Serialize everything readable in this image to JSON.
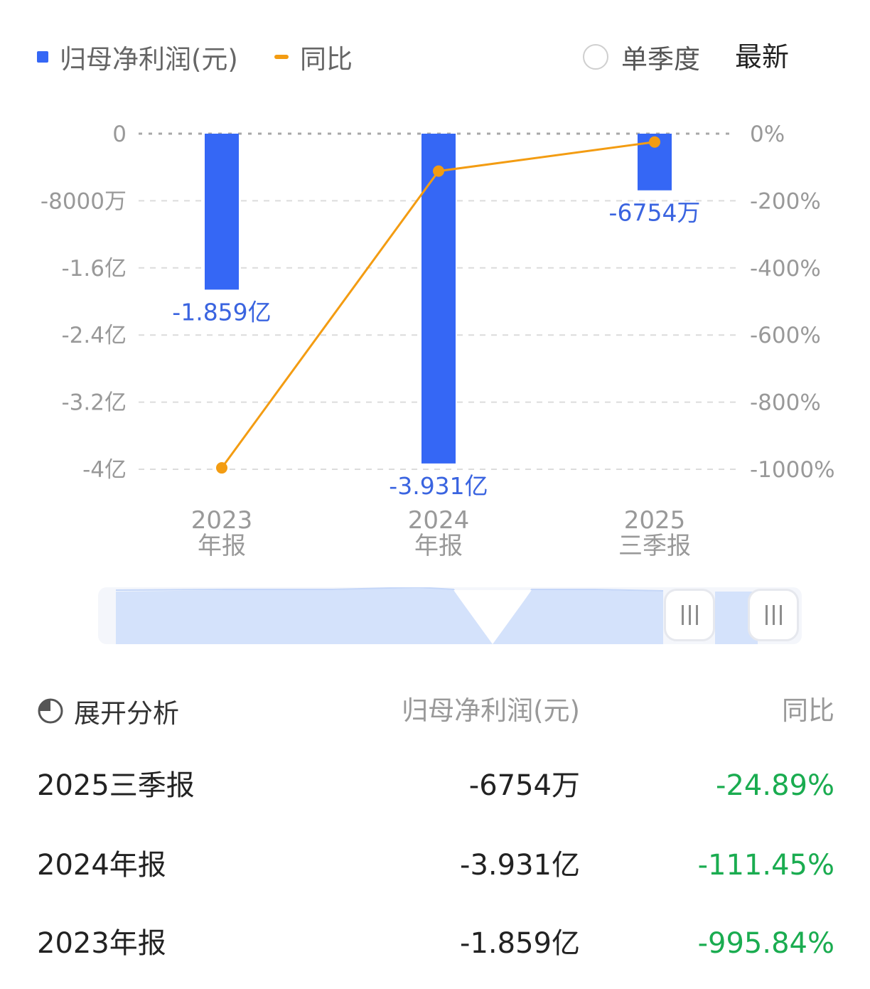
{
  "legend": {
    "bar_label": "归母净利润(元)",
    "line_label": "同比",
    "single_quarter_label": "单季度",
    "latest_label": "最新"
  },
  "chart_data": {
    "type": "bar",
    "categories": [
      [
        "2023",
        "年报"
      ],
      [
        "2024",
        "年报"
      ],
      [
        "2025",
        "三季报"
      ]
    ],
    "series": [
      {
        "name": "归母净利润(元)",
        "type": "bar",
        "axis": "left",
        "values": [
          -185900000,
          -393100000,
          -67540000
        ],
        "labels": [
          "-1.859亿",
          "-3.931亿",
          "-6754万"
        ]
      },
      {
        "name": "同比",
        "type": "line",
        "axis": "right",
        "values": [
          -995.84,
          -111.45,
          -24.89
        ]
      }
    ],
    "y_left": {
      "ylim": [
        -400000000,
        0
      ],
      "ticks": [
        0,
        -80000000,
        -160000000,
        -240000000,
        -320000000,
        -400000000
      ],
      "tick_labels": [
        "0",
        "-8000万",
        "-1.6亿",
        "-2.4亿",
        "-3.2亿",
        "-4亿"
      ]
    },
    "y_right": {
      "ylim": [
        -1000,
        0
      ],
      "ticks": [
        0,
        -200,
        -400,
        -600,
        -800,
        -1000
      ],
      "tick_labels": [
        "0%",
        "-200%",
        "-400%",
        "-600%",
        "-800%",
        "-1000%"
      ]
    },
    "grid": true,
    "legend_position": "top-left",
    "colors": {
      "bar": "#3567f5",
      "line": "#f39c12",
      "grid": "#dcdcdc",
      "label": "#3a64e0"
    }
  },
  "table": {
    "expand_label": "展开分析",
    "col_value": "归母净利润(元)",
    "col_yoy": "同比",
    "rows": [
      {
        "period": "2025三季报",
        "value": "-6754万",
        "yoy": "-24.89%"
      },
      {
        "period": "2024年报",
        "value": "-3.931亿",
        "yoy": "-111.45%"
      },
      {
        "period": "2023年报",
        "value": "-1.859亿",
        "yoy": "-995.84%"
      }
    ]
  }
}
